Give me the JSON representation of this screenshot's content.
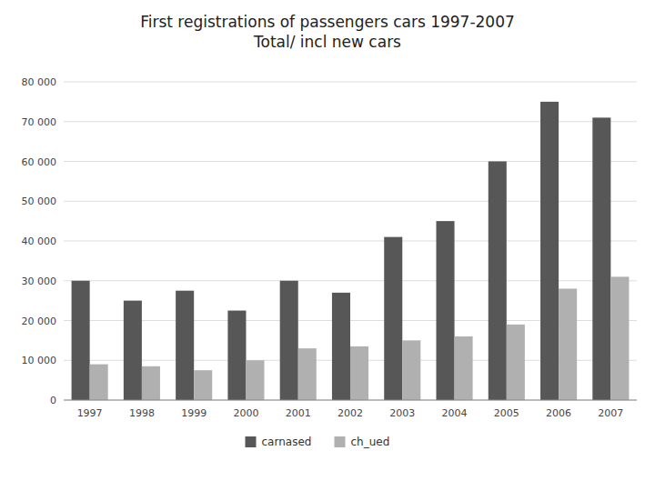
{
  "chart_data": {
    "type": "bar",
    "title": "First registrations of passengers cars 1997-2007\nTotal/ incl new cars",
    "categories": [
      "1997",
      "1998",
      "1999",
      "2000",
      "2001",
      "2002",
      "2003",
      "2004",
      "2005",
      "2006",
      "2007"
    ],
    "series": [
      {
        "name": "carnased",
        "color": "#575757",
        "values": [
          30000,
          25000,
          27500,
          22500,
          30000,
          27000,
          41000,
          45000,
          60000,
          75000,
          71000
        ]
      },
      {
        "name": "ch_ued",
        "color": "#b0b0b0",
        "values": [
          9000,
          8500,
          7500,
          10000,
          13000,
          13500,
          15000,
          16000,
          19000,
          28000,
          31000
        ]
      }
    ],
    "ylim": [
      0,
      80000
    ],
    "yticks": [
      0,
      {
        "value": 10000,
        "label": "10 000"
      },
      {
        "value": 20000,
        "label": "20 000"
      },
      {
        "value": 30000,
        "label": "30 000"
      },
      {
        "value": 40000,
        "label": "40 000"
      },
      {
        "value": 50000,
        "label": "50 000"
      },
      {
        "value": 60000,
        "label": "60 000"
      },
      {
        "value": 70000,
        "label": "70 000"
      },
      {
        "value": 80000,
        "label": "80 000"
      }
    ],
    "grid": true
  }
}
